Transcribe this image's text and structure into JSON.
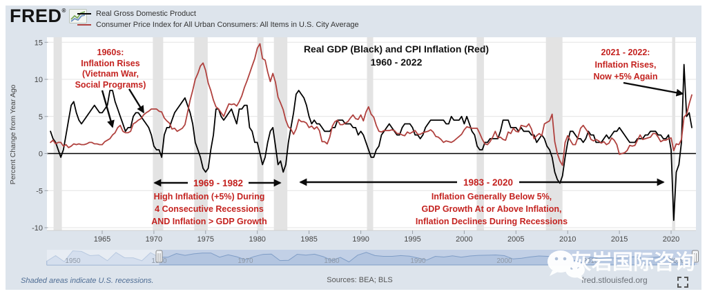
{
  "header": {
    "logo_text": "FRED",
    "logo_reg": "®",
    "legend": [
      {
        "label": "Real Gross Domestic Product",
        "color": "#000000"
      },
      {
        "label": "Consumer Price Index for All Urban Consumers: All Items in U.S. City Average",
        "color": "#b0413e"
      }
    ]
  },
  "chart_data": {
    "type": "line",
    "title": "Real GDP (Black) and CPI Inflation (Red)",
    "subtitle": "1960 - 2022",
    "xlabel": "",
    "ylabel": "Percent Change from Year Ago",
    "x_start": 1960,
    "x_step": 0.25,
    "xlim": [
      1959.6,
      2022.4
    ],
    "ylim": [
      -10.75,
      15.7
    ],
    "y_ticks": [
      -10,
      -5,
      0,
      5,
      10,
      15
    ],
    "x_ticks": [
      1965,
      1970,
      1975,
      1980,
      1985,
      1990,
      1995,
      2000,
      2005,
      2010,
      2015,
      2020
    ],
    "grid": true,
    "series": [
      {
        "name": "Real Gross Domestic Product",
        "color": "#000000",
        "values": [
          3.0,
          2.0,
          1.5,
          0.5,
          -0.5,
          0.5,
          2.5,
          4.5,
          6.5,
          7.0,
          5.5,
          4.5,
          4.0,
          4.5,
          5.0,
          5.5,
          6.0,
          6.5,
          6.0,
          5.5,
          5.5,
          6.0,
          6.5,
          8.5,
          8.5,
          7.0,
          6.0,
          5.0,
          4.0,
          3.0,
          3.5,
          3.5,
          5.0,
          5.5,
          5.5,
          5.0,
          4.5,
          4.0,
          3.5,
          2.5,
          1.0,
          0.5,
          0.5,
          -0.5,
          2.5,
          3.5,
          3.5,
          4.5,
          5.5,
          6.0,
          6.5,
          7.0,
          7.5,
          6.5,
          5.5,
          4.0,
          1.5,
          0.5,
          -0.5,
          -2.0,
          -2.5,
          -2.0,
          0.5,
          2.5,
          6.0,
          6.0,
          5.0,
          4.5,
          5.0,
          5.5,
          6.0,
          5.0,
          4.0,
          6.0,
          6.0,
          6.5,
          6.5,
          3.5,
          3.0,
          1.5,
          1.5,
          0.0,
          -1.5,
          -0.5,
          1.5,
          3.0,
          3.5,
          1.0,
          -1.5,
          -1.0,
          -2.5,
          -1.5,
          1.5,
          3.5,
          5.5,
          8.0,
          8.5,
          8.0,
          7.5,
          6.5,
          5.0,
          4.0,
          4.5,
          4.0,
          4.0,
          3.5,
          3.0,
          3.0,
          3.0,
          3.5,
          3.5,
          4.5,
          4.5,
          4.5,
          4.0,
          4.0,
          4.0,
          3.5,
          3.5,
          2.5,
          3.0,
          2.5,
          1.5,
          0.5,
          -0.5,
          -0.5,
          0.5,
          1.0,
          2.5,
          3.0,
          3.5,
          4.0,
          3.5,
          3.0,
          2.5,
          2.5,
          3.5,
          4.0,
          4.0,
          4.0,
          3.5,
          2.5,
          2.5,
          2.0,
          2.5,
          3.5,
          4.0,
          4.5,
          4.5,
          4.5,
          4.5,
          4.5,
          4.5,
          4.0,
          4.0,
          5.0,
          4.5,
          4.5,
          4.5,
          5.0,
          4.0,
          5.0,
          4.0,
          3.0,
          2.5,
          1.0,
          0.5,
          0.5,
          1.5,
          1.5,
          2.0,
          2.0,
          2.0,
          2.0,
          3.0,
          4.5,
          4.5,
          4.5,
          3.5,
          3.5,
          3.5,
          3.0,
          3.5,
          3.0,
          3.0,
          3.0,
          2.5,
          2.5,
          1.5,
          2.0,
          2.5,
          2.0,
          1.0,
          0.5,
          -0.5,
          -2.5,
          -3.5,
          -4.0,
          -3.0,
          -0.5,
          1.5,
          3.0,
          3.0,
          2.5,
          2.0,
          2.0,
          1.5,
          2.0,
          3.0,
          2.5,
          2.5,
          1.5,
          1.5,
          1.5,
          2.0,
          2.5,
          2.0,
          2.5,
          3.0,
          3.0,
          3.5,
          3.0,
          2.5,
          2.0,
          1.5,
          1.5,
          1.5,
          2.0,
          2.0,
          2.0,
          2.5,
          2.5,
          3.0,
          3.0,
          3.0,
          2.5,
          2.5,
          2.0,
          2.0,
          2.5,
          0.5,
          -9.0,
          -2.5,
          -1.5,
          1.5,
          12.0,
          5.0,
          5.5,
          3.5
        ]
      },
      {
        "name": "Consumer Price Index for All Urban Consumers: All Items in U.S. City Average",
        "color": "#b0413e",
        "values": [
          1.5,
          1.8,
          1.3,
          1.5,
          1.5,
          1.0,
          1.2,
          0.8,
          1.0,
          1.3,
          1.2,
          1.3,
          1.2,
          1.2,
          1.3,
          1.5,
          1.5,
          1.3,
          1.3,
          1.2,
          1.2,
          1.6,
          1.8,
          2.0,
          2.5,
          2.8,
          3.5,
          3.8,
          3.0,
          2.8,
          2.8,
          3.0,
          4.0,
          4.2,
          4.5,
          4.7,
          5.2,
          5.5,
          5.7,
          6.0,
          6.0,
          6.0,
          5.7,
          5.6,
          4.8,
          4.4,
          4.1,
          3.3,
          3.4,
          3.0,
          3.2,
          3.4,
          3.9,
          5.5,
          7.2,
          8.5,
          10.0,
          10.8,
          11.8,
          12.2,
          11.2,
          9.5,
          8.5,
          7.2,
          6.3,
          6.0,
          5.5,
          5.0,
          5.9,
          6.7,
          6.6,
          6.7,
          6.4,
          7.0,
          7.8,
          8.9,
          9.8,
          10.8,
          11.8,
          12.8,
          14.2,
          14.8,
          12.8,
          12.6,
          11.0,
          9.7,
          10.8,
          9.6,
          7.6,
          6.8,
          5.9,
          4.5,
          3.6,
          3.3,
          2.6,
          3.3,
          4.6,
          4.3,
          4.3,
          4.1,
          3.5,
          3.7,
          3.3,
          3.6,
          3.1,
          1.6,
          1.6,
          1.3,
          2.2,
          3.7,
          4.3,
          4.5,
          3.9,
          3.9,
          4.1,
          4.3,
          4.8,
          5.2,
          4.7,
          4.6,
          5.2,
          4.4,
          5.6,
          6.3,
          5.3,
          4.9,
          3.8,
          3.0,
          2.9,
          3.1,
          3.1,
          3.1,
          3.2,
          3.1,
          2.7,
          2.7,
          2.5,
          2.4,
          2.9,
          2.7,
          2.9,
          3.1,
          2.6,
          2.6,
          2.8,
          2.9,
          3.0,
          3.2,
          2.9,
          2.3,
          2.2,
          1.9,
          1.5,
          1.7,
          1.6,
          1.5,
          1.7,
          2.0,
          2.3,
          2.6,
          3.2,
          3.6,
          3.5,
          3.4,
          3.4,
          3.4,
          2.7,
          1.9,
          1.3,
          1.2,
          1.6,
          2.2,
          3.0,
          2.1,
          2.2,
          1.9,
          1.8,
          2.9,
          2.7,
          3.4,
          3.0,
          2.9,
          3.8,
          3.7,
          3.6,
          4.0,
          3.3,
          2.0,
          2.4,
          2.7,
          2.4,
          4.0,
          4.2,
          4.4,
          5.3,
          1.6,
          0.0,
          -1.0,
          -1.6,
          1.5,
          2.4,
          1.8,
          1.2,
          1.2,
          2.2,
          3.4,
          3.8,
          3.3,
          2.8,
          1.9,
          1.7,
          1.9,
          1.7,
          1.4,
          1.6,
          1.2,
          1.4,
          2.1,
          1.8,
          1.2,
          -0.1,
          0.0,
          0.1,
          0.4,
          1.1,
          1.0,
          1.1,
          1.8,
          2.5,
          1.9,
          2.0,
          2.1,
          2.2,
          2.7,
          2.7,
          2.2,
          1.6,
          1.8,
          1.8,
          2.0,
          2.1,
          0.4,
          1.3,
          1.2,
          1.9,
          4.9,
          5.3,
          6.7,
          7.9
        ]
      }
    ],
    "recessions": [
      [
        1960.3,
        1961.1
      ],
      [
        1969.9,
        1970.9
      ],
      [
        1973.9,
        1975.2
      ],
      [
        1980.0,
        1980.6
      ],
      [
        1981.6,
        1982.9
      ],
      [
        1990.6,
        1991.2
      ],
      [
        2001.2,
        2001.9
      ],
      [
        2007.9,
        2009.5
      ],
      [
        2020.1,
        2020.4
      ]
    ],
    "minimap": {
      "start_year": 1947,
      "values": [
        -1.0,
        4.1,
        -1.5,
        8.7,
        8.1,
        4.1,
        4.7,
        -0.6,
        7.1,
        2.1,
        2.1,
        -0.7,
        6.9,
        2.6,
        2.6,
        6.1,
        4.4,
        5.8,
        6.5,
        6.6,
        2.7,
        4.9,
        3.1,
        0.2,
        3.3,
        5.3,
        5.6,
        -0.5,
        -0.2,
        5.4,
        4.6,
        5.5,
        3.2,
        -0.3,
        2.5,
        -1.8,
        4.6,
        7.2,
        4.2,
        3.5,
        3.5,
        4.2,
        3.7,
        1.9,
        -0.1,
        3.5,
        2.8,
        4.0,
        2.7,
        3.8,
        4.4,
        4.5,
        4.8,
        4.1,
        1.0,
        1.7,
        2.9,
        3.8,
        3.5,
        2.9,
        1.9,
        -0.1,
        -2.5,
        2.6,
        1.6,
        2.2,
        1.8,
        2.5,
        3.1,
        1.7,
        2.3,
        2.9,
        2.3,
        -3.4,
        5.7,
        2.0
      ],
      "decade_labels": [
        1950,
        1960,
        1970,
        1980,
        1990,
        2000,
        2010,
        2020
      ],
      "selection": [
        1960,
        2022.3
      ]
    }
  },
  "annotations": {
    "color": "#c42320",
    "sixties": {
      "lines": [
        "1960s:",
        "Inflation Rises",
        "(Vietnam War,",
        "Social Programs)"
      ]
    },
    "period_1969_1982": {
      "title": "1969 - 1982",
      "lines": [
        "High Inflation (+5%) During",
        "4 Consecutive Recessions",
        "AND Inflation > GDP Growth"
      ]
    },
    "period_1983_2020": {
      "title": "1983 - 2020",
      "lines": [
        "Inflation Generally Below 5%,",
        "GDP Growth At or Above Inflation,",
        "Inflation Declines During Recessions"
      ]
    },
    "recent": {
      "lines": [
        "2021 - 2022:",
        "Inflation Rises,",
        "Now +5% Again"
      ]
    }
  },
  "footer": {
    "note": "Shaded areas indicate U.S. recessions.",
    "sources": "Sources: BEA; BLS",
    "site": "fred.stlouisfed.org"
  },
  "watermark": {
    "text": "灰岩国际咨询"
  },
  "colors": {
    "panel_bg": "#dde4ec",
    "plot_bg": "#ffffff",
    "gridline": "#e3e3e3",
    "recession": "#e3e3e3",
    "zero_line": "#000000",
    "minimap_fill": "#b3c5e0",
    "minimap_line": "#7f9dc6",
    "annotation_red": "#c42320"
  }
}
